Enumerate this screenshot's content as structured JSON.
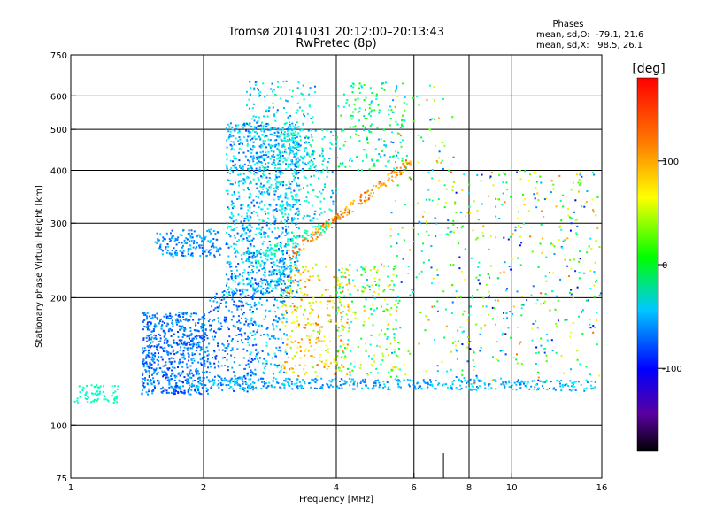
{
  "chart_data": {
    "type": "scatter",
    "title": "Tromsø 20141031 20:12:00–20:13:43",
    "subtitle": "RwPretec (8p)",
    "xlabel": "Frequency [MHz]",
    "ylabel": "Stationary phase Virtual Height [km]",
    "x_scale": "log",
    "y_scale": "log",
    "xlim": [
      1,
      16
    ],
    "ylim": [
      75,
      750
    ],
    "x_ticks": [
      1,
      2,
      4,
      6,
      8,
      10,
      16
    ],
    "x_tick_labels": [
      "1",
      "2",
      "4",
      "6",
      "8",
      "10",
      "16"
    ],
    "x_grid": [
      2,
      4,
      6,
      8,
      10
    ],
    "x_minor_grid": [
      7
    ],
    "y_ticks": [
      75,
      100,
      200,
      300,
      400,
      500,
      600,
      750
    ],
    "y_tick_labels": [
      "75",
      "100",
      "200",
      "300",
      "400",
      "500",
      "600",
      "750"
    ],
    "y_grid": [
      100,
      200,
      300,
      400,
      500,
      600
    ],
    "grid": true,
    "stats": {
      "heading": "Phases",
      "line_o": "mean, sd,O:  -79.1, 21.6",
      "line_x": "mean, sd,X:   98.5, 26.1"
    },
    "colorbar": {
      "label": "[deg]",
      "range": [
        -180,
        180
      ],
      "ticks": [
        100,
        0,
        -100
      ],
      "tick_labels": [
        "100",
        "0",
        "-100"
      ],
      "colormap": "rainbow"
    },
    "clusters": [
      {
        "f": [
          1.0,
          1.28
        ],
        "h": [
          112,
          125
        ],
        "phase": [
          -60,
          -20
        ],
        "n": 70
      },
      {
        "f": [
          1.45,
          2.05
        ],
        "h": [
          118,
          185
        ],
        "phase": [
          -130,
          -80
        ],
        "n": 650
      },
      {
        "f": [
          1.55,
          2.2
        ],
        "h": [
          250,
          290
        ],
        "phase": [
          -120,
          -70
        ],
        "n": 170
      },
      {
        "f": [
          2.05,
          2.6
        ],
        "h": [
          120,
          210
        ],
        "phase": [
          -130,
          -80
        ],
        "n": 250
      },
      {
        "f": [
          2.25,
          3.3
        ],
        "h": [
          200,
          520
        ],
        "phase": [
          -120,
          -40
        ],
        "n": 950
      },
      {
        "f": [
          2.5,
          3.6
        ],
        "h": [
          400,
          650
        ],
        "phase": [
          -110,
          -30
        ],
        "n": 220
      },
      {
        "f": [
          2.5,
          3.1
        ],
        "h": [
          130,
          260
        ],
        "phase": [
          -120,
          -50
        ],
        "n": 240
      },
      {
        "f": [
          3.0,
          4.3
        ],
        "h": [
          130,
          240
        ],
        "phase": [
          60,
          150
        ],
        "n": 280
      },
      {
        "f": [
          2.9,
          4.0
        ],
        "h": [
          300,
          500
        ],
        "phase": [
          -100,
          -20
        ],
        "n": 220
      },
      {
        "f": [
          4.0,
          5.8
        ],
        "h": [
          400,
          650
        ],
        "phase": [
          -90,
          40
        ],
        "n": 180
      },
      {
        "f": [
          4.0,
          5.6
        ],
        "h": [
          130,
          240
        ],
        "phase": [
          -80,
          120
        ],
        "n": 200
      },
      {
        "f": [
          5.3,
          7.4
        ],
        "h": [
          130,
          650
        ],
        "phase": [
          -120,
          150
        ],
        "n": 160
      },
      {
        "f": [
          7.2,
          16.0
        ],
        "h": [
          125,
          400
        ],
        "phase": [
          -150,
          150
        ],
        "n": 420
      }
    ],
    "lines": [
      {
        "f0": 1.75,
        "f1": 15.6,
        "h0": 126,
        "h1": 124,
        "phase": [
          -110,
          -60
        ],
        "n": 450
      },
      {
        "f0": 3.1,
        "f1": 5.9,
        "h0": 250,
        "h1": 420,
        "phase": [
          110,
          160
        ],
        "n": 170
      },
      {
        "f0": 2.6,
        "f1": 3.9,
        "h0": 245,
        "h1": 300,
        "phase": [
          -60,
          -10
        ],
        "n": 80
      }
    ]
  }
}
